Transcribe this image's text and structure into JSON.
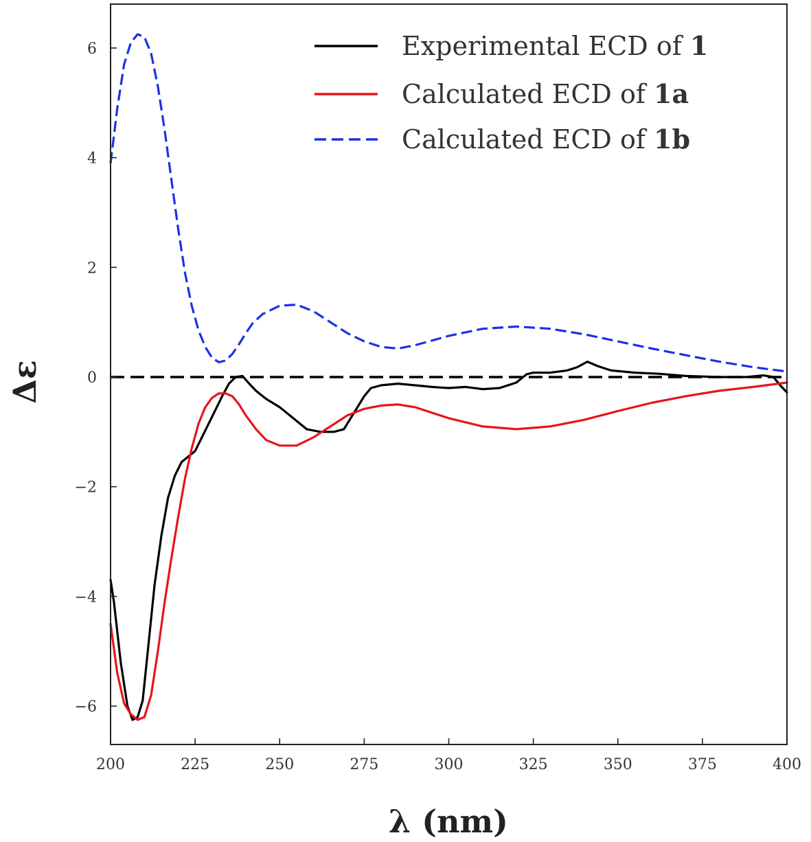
{
  "chart_data": {
    "type": "line",
    "xlabel": "λ (nm)",
    "ylabel": "Δε",
    "xlim": [
      200,
      400
    ],
    "ylim": [
      -6.7,
      6.8
    ],
    "xticks": [
      200,
      225,
      250,
      275,
      300,
      325,
      350,
      375,
      400
    ],
    "yticks": [
      -6,
      -4,
      -2,
      0,
      2,
      4,
      6
    ],
    "grid": false,
    "legend_position": "top-right",
    "reference_line": {
      "y": 0,
      "style": "dashed",
      "color": "#000000"
    },
    "series": [
      {
        "name": "Experimental ECD of 1",
        "legend_prefix": "Experimental ECD of ",
        "legend_bold": "1",
        "color": "#000000",
        "style": "solid",
        "x": [
          200,
          201,
          203,
          205,
          206.5,
          208,
          209.5,
          211,
          213,
          215,
          217,
          219,
          221,
          223,
          225,
          227,
          229,
          231,
          233,
          235,
          237,
          239,
          241,
          243,
          246,
          250,
          254,
          258,
          262,
          266,
          269,
          272,
          275,
          277,
          280,
          285,
          290,
          295,
          300,
          305,
          310,
          315,
          320,
          323,
          325,
          330,
          335,
          338,
          341,
          344,
          348,
          355,
          362,
          370,
          380,
          388,
          393,
          396,
          398,
          400
        ],
        "y": [
          -3.7,
          -4.1,
          -5.2,
          -6.0,
          -6.25,
          -6.2,
          -5.9,
          -5.0,
          -3.8,
          -2.9,
          -2.2,
          -1.8,
          -1.55,
          -1.45,
          -1.35,
          -1.1,
          -0.85,
          -0.6,
          -0.35,
          -0.12,
          0.0,
          0.02,
          -0.12,
          -0.25,
          -0.4,
          -0.55,
          -0.75,
          -0.95,
          -1.0,
          -1.0,
          -0.95,
          -0.65,
          -0.35,
          -0.2,
          -0.15,
          -0.12,
          -0.15,
          -0.18,
          -0.2,
          -0.18,
          -0.22,
          -0.2,
          -0.1,
          0.05,
          0.08,
          0.08,
          0.12,
          0.18,
          0.28,
          0.2,
          0.12,
          0.08,
          0.06,
          0.02,
          0.0,
          0.0,
          0.03,
          0.0,
          -0.15,
          -0.28
        ]
      },
      {
        "name": "Calculated ECD of 1a",
        "legend_prefix": "Calculated ECD of ",
        "legend_bold": "1a",
        "color": "#e8141b",
        "style": "solid",
        "x": [
          200,
          202,
          204,
          206,
          208,
          210,
          212,
          214,
          216,
          218,
          220,
          222,
          224,
          226,
          228,
          230,
          232,
          234,
          236,
          238,
          240,
          243,
          246,
          250,
          255,
          260,
          265,
          270,
          275,
          280,
          285,
          290,
          300,
          310,
          320,
          330,
          340,
          350,
          360,
          370,
          380,
          390,
          400
        ],
        "y": [
          -4.5,
          -5.4,
          -5.95,
          -6.15,
          -6.25,
          -6.2,
          -5.8,
          -5.0,
          -4.1,
          -3.3,
          -2.55,
          -1.85,
          -1.3,
          -0.85,
          -0.55,
          -0.38,
          -0.3,
          -0.3,
          -0.35,
          -0.5,
          -0.7,
          -0.95,
          -1.15,
          -1.25,
          -1.25,
          -1.1,
          -0.9,
          -0.7,
          -0.58,
          -0.52,
          -0.5,
          -0.55,
          -0.75,
          -0.9,
          -0.95,
          -0.9,
          -0.78,
          -0.62,
          -0.47,
          -0.35,
          -0.25,
          -0.18,
          -0.1
        ]
      },
      {
        "name": "Calculated ECD of 1b",
        "legend_prefix": "Calculated ECD of ",
        "legend_bold": "1b",
        "color": "#1a31e6",
        "style": "dashed",
        "x": [
          200,
          202,
          204,
          206,
          208,
          210,
          212,
          214,
          216,
          218,
          220,
          222,
          224,
          226,
          228,
          230,
          232,
          234,
          236,
          238,
          240,
          242,
          245,
          250,
          255,
          260,
          265,
          270,
          275,
          280,
          285,
          290,
          300,
          310,
          320,
          330,
          340,
          350,
          360,
          370,
          380,
          390,
          400
        ],
        "y": [
          3.9,
          4.9,
          5.7,
          6.1,
          6.25,
          6.2,
          5.9,
          5.3,
          4.5,
          3.6,
          2.7,
          1.9,
          1.3,
          0.85,
          0.55,
          0.35,
          0.27,
          0.3,
          0.42,
          0.6,
          0.8,
          0.98,
          1.15,
          1.3,
          1.32,
          1.2,
          1.0,
          0.8,
          0.65,
          0.55,
          0.52,
          0.58,
          0.75,
          0.88,
          0.92,
          0.88,
          0.78,
          0.65,
          0.52,
          0.4,
          0.28,
          0.18,
          0.1
        ]
      }
    ]
  }
}
